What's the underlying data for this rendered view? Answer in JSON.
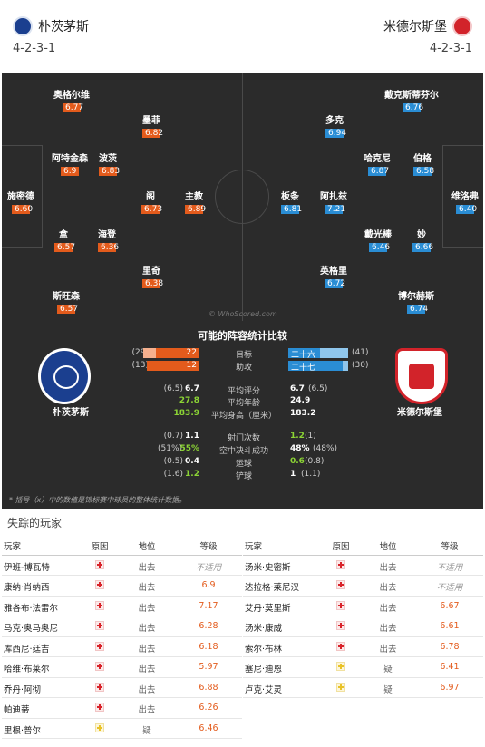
{
  "header": {
    "home_team": "朴茨茅斯",
    "away_team": "米德尔斯堡",
    "home_formation": "4-2-3-1",
    "away_formation": "4-2-3-1"
  },
  "pitch": {
    "watermark": "© WhoScored.com",
    "home_players": [
      {
        "name": "奥格尔维",
        "rating": "6.77"
      },
      {
        "name": "墨菲",
        "rating": "6.82"
      },
      {
        "name": "阿特金森",
        "rating": "6.9"
      },
      {
        "name": "波茨",
        "rating": "6.83"
      },
      {
        "name": "施密德",
        "rating": "6.60"
      },
      {
        "name": "阁",
        "rating": "6.73"
      },
      {
        "name": "主教",
        "rating": "6.89"
      },
      {
        "name": "盒",
        "rating": "6.57"
      },
      {
        "name": "海登",
        "rating": "6.36"
      },
      {
        "name": "里奇",
        "rating": "6.38"
      },
      {
        "name": "斯旺森",
        "rating": "6.57"
      }
    ],
    "away_players": [
      {
        "name": "戴克斯蒂芬尔",
        "rating": "6.76"
      },
      {
        "name": "多克",
        "rating": "6.94"
      },
      {
        "name": "哈克尼",
        "rating": "6.87"
      },
      {
        "name": "伯格",
        "rating": "6.58"
      },
      {
        "name": "板条",
        "rating": "6.81"
      },
      {
        "name": "阿扎兹",
        "rating": "7.21"
      },
      {
        "name": "维洛弗",
        "rating": "6.40"
      },
      {
        "name": "戴光棒",
        "rating": "6.46"
      },
      {
        "name": "妙",
        "rating": "6.66"
      },
      {
        "name": "英格里",
        "rating": "6.72"
      },
      {
        "name": "博尔赫斯",
        "rating": "6.74"
      }
    ]
  },
  "compare": {
    "title": "可能的阵容统计比较",
    "home_name": "朴茨茅斯",
    "away_name": "米德尔斯堡",
    "rows": [
      {
        "label": "目标",
        "home_prev": "(29)",
        "home": "22",
        "away": "二十六",
        "away_prev": "(41)"
      },
      {
        "label": "助攻",
        "home_prev": "(13)",
        "home": "12",
        "away": "二十七",
        "away_prev": "(30)"
      },
      {
        "label": "平均评分",
        "home_prev": "(6.5)",
        "home": "6.7",
        "away": "6.7",
        "away_prev": "(6.5)"
      },
      {
        "label": "平均年龄",
        "home_prev": "",
        "home": "27.8",
        "away": "24.9",
        "away_prev": ""
      },
      {
        "label": "平均身高（厘米）",
        "home_prev": "",
        "home": "183.9",
        "away": "183.2",
        "away_prev": ""
      },
      {
        "label": "射门次数",
        "home_prev": "(0.7)",
        "home": "1.1",
        "away": "1.2",
        "away_prev": "(1)"
      },
      {
        "label": "空中决斗成功",
        "home_prev": "(51%)",
        "home": "55%",
        "away": "48%",
        "away_prev": "(48%)"
      },
      {
        "label": "运球",
        "home_prev": "(0.5)",
        "home": "0.4",
        "away": "0.6",
        "away_prev": "(0.8)"
      },
      {
        "label": "铲球",
        "home_prev": "(1.6)",
        "home": "1.2",
        "away": "1",
        "away_prev": "(1.1)"
      }
    ],
    "note": "* 括号（x）中的数值是锦标赛中球员的整体统计数据。"
  },
  "missing": {
    "title": "失踪的玩家",
    "columns": {
      "player": "玩家",
      "reason": "原因",
      "position": "地位",
      "rating": "等级"
    },
    "home": [
      {
        "name": "伊班-博瓦特",
        "reason": "injury",
        "position": "出去",
        "rating": "不适用"
      },
      {
        "name": "康纳·肖纳西",
        "reason": "injury",
        "position": "出去",
        "rating": "6.9"
      },
      {
        "name": "雅各布·法雷尔",
        "reason": "injury",
        "position": "出去",
        "rating": "7.17"
      },
      {
        "name": "马克·奥马奥尼",
        "reason": "injury",
        "position": "出去",
        "rating": "6.28"
      },
      {
        "name": "库西尼·廷吉",
        "reason": "injury",
        "position": "出去",
        "rating": "6.18"
      },
      {
        "name": "哈维·布莱尔",
        "reason": "injury",
        "position": "出去",
        "rating": "5.97"
      },
      {
        "name": "乔丹·阿彻",
        "reason": "injury",
        "position": "出去",
        "rating": "6.88"
      },
      {
        "name": "帕迪蒂",
        "reason": "injury",
        "position": "出去",
        "rating": "6.26"
      },
      {
        "name": "里根·普尔",
        "reason": "doubt",
        "position": "疑",
        "rating": "6.46"
      }
    ],
    "away": [
      {
        "name": "汤米·史密斯",
        "reason": "injury",
        "position": "出去",
        "rating": "不适用"
      },
      {
        "name": "达拉格·莱尼汉",
        "reason": "injury",
        "position": "出去",
        "rating": "不适用"
      },
      {
        "name": "艾丹·莫里斯",
        "reason": "injury",
        "position": "出去",
        "rating": "6.67"
      },
      {
        "name": "汤米·康威",
        "reason": "injury",
        "position": "出去",
        "rating": "6.61"
      },
      {
        "name": "索尔·布林",
        "reason": "injury",
        "position": "出去",
        "rating": "6.78"
      },
      {
        "name": "塞尼·迪恩",
        "reason": "doubt",
        "position": "疑",
        "rating": "6.41"
      },
      {
        "name": "卢克·艾灵",
        "reason": "doubt",
        "position": "疑",
        "rating": "6.97"
      }
    ]
  }
}
